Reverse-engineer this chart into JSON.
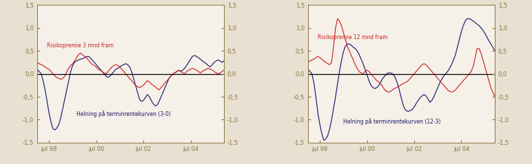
{
  "background_color": "#e8e0d0",
  "plot_bg_color": "#f5f0e8",
  "red_color": "#cc2222",
  "blue_color": "#1a1a6e",
  "ylim": [
    -1.5,
    1.5
  ],
  "yticks": [
    -1.5,
    -1.0,
    -0.5,
    0.0,
    0.5,
    1.0,
    1.5
  ],
  "ytick_labels_left": [
    "-1,5",
    "-1,0",
    "-0,5",
    "0,0",
    "0,5",
    "1,0",
    "1,5"
  ],
  "ytick_labels_right": [
    "-1,5",
    "-1,0",
    "-0,5",
    "0,0",
    "0,5",
    "1,0",
    "1,5"
  ],
  "xtick_labels": [
    "jul 98",
    "jul 00",
    "jul 02",
    "jul 04"
  ],
  "label1_red": "Risikopremie 3 mnd fram",
  "label1_blue": "Helning på terminrentekurven (3-0)",
  "label2_red": "Risikopremie 12 mnd fram",
  "label2_blue": "Helning på terminrentekurven (12-3)",
  "tick_color": "#8B7340",
  "spine_color": "#8B7340",
  "n_points": 96,
  "r1": [
    0.25,
    0.22,
    0.2,
    0.18,
    0.15,
    0.12,
    0.1,
    0.05,
    0.0,
    -0.05,
    -0.08,
    -0.1,
    -0.12,
    -0.1,
    -0.05,
    0.05,
    0.12,
    0.18,
    0.22,
    0.28,
    0.35,
    0.42,
    0.45,
    0.42,
    0.38,
    0.35,
    0.3,
    0.25,
    0.2,
    0.18,
    0.15,
    0.1,
    0.08,
    0.05,
    0.02,
    0.0,
    0.05,
    0.1,
    0.15,
    0.18,
    0.2,
    0.18,
    0.15,
    0.1,
    0.05,
    0.0,
    -0.05,
    -0.1,
    -0.15,
    -0.2,
    -0.25,
    -0.28,
    -0.3,
    -0.28,
    -0.25,
    -0.2,
    -0.15,
    -0.18,
    -0.22,
    -0.25,
    -0.28,
    -0.32,
    -0.35,
    -0.3,
    -0.25,
    -0.2,
    -0.15,
    -0.1,
    -0.05,
    0.0,
    0.02,
    0.05,
    0.08,
    0.05,
    0.02,
    0.0,
    0.05,
    0.08,
    0.1,
    0.12,
    0.1,
    0.08,
    0.05,
    0.02,
    0.05,
    0.08,
    0.1,
    0.12,
    0.1,
    0.08,
    0.05,
    0.02,
    0.0,
    0.02,
    0.05,
    0.08
  ],
  "b1": [
    0.1,
    0.05,
    0.0,
    -0.15,
    -0.35,
    -0.6,
    -0.85,
    -1.05,
    -1.2,
    -1.22,
    -1.18,
    -1.1,
    -0.95,
    -0.75,
    -0.55,
    -0.35,
    -0.15,
    0.05,
    0.18,
    0.25,
    0.28,
    0.3,
    0.32,
    0.33,
    0.35,
    0.37,
    0.38,
    0.35,
    0.3,
    0.25,
    0.2,
    0.15,
    0.1,
    0.05,
    0.0,
    -0.05,
    -0.08,
    -0.05,
    0.0,
    0.05,
    0.1,
    0.12,
    0.15,
    0.18,
    0.2,
    0.22,
    0.2,
    0.15,
    0.05,
    -0.1,
    -0.25,
    -0.4,
    -0.55,
    -0.6,
    -0.58,
    -0.52,
    -0.45,
    -0.5,
    -0.58,
    -0.65,
    -0.7,
    -0.68,
    -0.6,
    -0.5,
    -0.4,
    -0.3,
    -0.2,
    -0.1,
    -0.05,
    0.0,
    0.02,
    0.05,
    0.08,
    0.05,
    0.08,
    0.12,
    0.18,
    0.25,
    0.32,
    0.38,
    0.4,
    0.38,
    0.35,
    0.32,
    0.28,
    0.25,
    0.22,
    0.18,
    0.15,
    0.2,
    0.25,
    0.28,
    0.3,
    0.28,
    0.25,
    0.28
  ],
  "r2": [
    0.25,
    0.28,
    0.3,
    0.32,
    0.35,
    0.38,
    0.35,
    0.32,
    0.28,
    0.25,
    0.22,
    0.2,
    0.25,
    0.6,
    1.0,
    1.2,
    1.15,
    1.05,
    0.9,
    0.75,
    0.6,
    0.5,
    0.4,
    0.3,
    0.2,
    0.12,
    0.05,
    0.02,
    0.0,
    0.05,
    0.08,
    0.05,
    0.0,
    -0.05,
    -0.1,
    -0.15,
    -0.18,
    -0.22,
    -0.28,
    -0.35,
    -0.38,
    -0.4,
    -0.38,
    -0.35,
    -0.32,
    -0.3,
    -0.28,
    -0.25,
    -0.22,
    -0.2,
    -0.18,
    -0.15,
    -0.1,
    -0.05,
    0.0,
    0.05,
    0.1,
    0.15,
    0.2,
    0.22,
    0.2,
    0.15,
    0.1,
    0.05,
    0.0,
    -0.05,
    -0.1,
    -0.15,
    -0.2,
    -0.25,
    -0.3,
    -0.35,
    -0.38,
    -0.4,
    -0.38,
    -0.35,
    -0.3,
    -0.25,
    -0.2,
    -0.15,
    -0.1,
    -0.05,
    0.0,
    0.05,
    0.15,
    0.35,
    0.55,
    0.55,
    0.45,
    0.3,
    0.15,
    0.0,
    -0.15,
    -0.3,
    -0.4,
    -0.5
  ],
  "b2": [
    0.1,
    0.05,
    0.0,
    -0.2,
    -0.5,
    -0.85,
    -1.1,
    -1.3,
    -1.45,
    -1.42,
    -1.35,
    -1.2,
    -1.0,
    -0.75,
    -0.5,
    -0.22,
    0.05,
    0.28,
    0.48,
    0.6,
    0.65,
    0.65,
    0.62,
    0.58,
    0.55,
    0.5,
    0.42,
    0.32,
    0.22,
    0.1,
    -0.02,
    -0.15,
    -0.25,
    -0.3,
    -0.32,
    -0.3,
    -0.25,
    -0.18,
    -0.1,
    -0.05,
    0.0,
    0.02,
    0.02,
    0.0,
    -0.05,
    -0.15,
    -0.28,
    -0.45,
    -0.62,
    -0.75,
    -0.8,
    -0.82,
    -0.8,
    -0.78,
    -0.72,
    -0.65,
    -0.58,
    -0.52,
    -0.48,
    -0.45,
    -0.48,
    -0.55,
    -0.62,
    -0.58,
    -0.5,
    -0.4,
    -0.3,
    -0.2,
    -0.12,
    -0.05,
    0.0,
    0.05,
    0.12,
    0.2,
    0.3,
    0.42,
    0.58,
    0.75,
    0.92,
    1.05,
    1.15,
    1.2,
    1.2,
    1.18,
    1.15,
    1.12,
    1.08,
    1.05,
    1.0,
    0.95,
    0.88,
    0.8,
    0.72,
    0.65,
    0.58,
    0.5
  ]
}
